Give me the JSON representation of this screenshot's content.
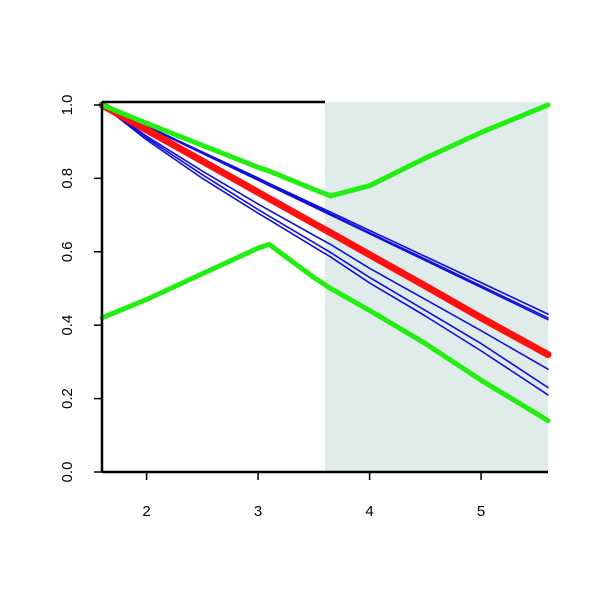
{
  "chart_data": {
    "type": "line",
    "x": [
      1.6,
      2,
      2.5,
      3,
      3.1,
      3.5,
      3.65,
      4,
      4.5,
      5,
      5.6
    ],
    "series": [
      {
        "color": "#1010dd",
        "width": 1.6,
        "values": [
          1,
          0.942,
          0.87,
          0.797,
          0.783,
          0.725,
          0.703,
          0.652,
          0.58,
          0.507,
          0.42
        ]
      },
      {
        "color": "#1010dd",
        "width": 1.6,
        "values": [
          1,
          0.943,
          0.872,
          0.801,
          0.786,
          0.729,
          0.708,
          0.658,
          0.587,
          0.516,
          0.43
        ]
      },
      {
        "color": "#1010dd",
        "width": 1.6,
        "values": [
          1,
          0.941,
          0.868,
          0.795,
          0.78,
          0.722,
          0.7,
          0.649,
          0.576,
          0.503,
          0.415
        ]
      },
      {
        "color": "#1010dd",
        "width": 1.6,
        "values": [
          1,
          0.915,
          0.82,
          0.73,
          0.713,
          0.645,
          0.62,
          0.555,
          0.47,
          0.385,
          0.28
        ]
      },
      {
        "color": "#1010dd",
        "width": 1.6,
        "values": [
          1,
          0.91,
          0.81,
          0.715,
          0.697,
          0.625,
          0.598,
          0.53,
          0.44,
          0.35,
          0.23
        ]
      },
      {
        "color": "#1010dd",
        "width": 1.6,
        "values": [
          1,
          0.905,
          0.8,
          0.705,
          0.687,
          0.613,
          0.586,
          0.515,
          0.425,
          0.33,
          0.21
        ]
      },
      {
        "color": "#ff1010",
        "width": 7,
        "values": [
          1,
          0.932,
          0.847,
          0.762,
          0.745,
          0.677,
          0.652,
          0.592,
          0.507,
          0.42,
          0.32
        ]
      },
      {
        "color": "#22ee11",
        "width": 5,
        "values": [
          1,
          0.95,
          0.89,
          0.83,
          0.82,
          0.77,
          0.752,
          0.78,
          0.855,
          0.925,
          1.0
        ]
      },
      {
        "color": "#22ee11",
        "width": 5,
        "values": [
          0.42,
          0.47,
          0.54,
          0.61,
          0.62,
          0.53,
          0.5,
          0.44,
          0.35,
          0.25,
          0.14
        ]
      }
    ],
    "shade": {
      "x": [
        3.6,
        5.6
      ],
      "color": "#e0ecea"
    },
    "xlim": [
      1.6,
      5.6
    ],
    "ylim": [
      0,
      1.008
    ],
    "xticks": [
      2,
      3,
      4,
      5
    ],
    "yticks": [
      {
        "value": 0,
        "label": "0.0"
      },
      {
        "value": 0.2,
        "label": "0.2"
      },
      {
        "value": 0.4,
        "label": "0.4"
      },
      {
        "value": 0.6,
        "label": "0.6"
      },
      {
        "value": 0.8,
        "label": "0.8"
      },
      {
        "value": 1,
        "label": "1.0"
      }
    ]
  }
}
